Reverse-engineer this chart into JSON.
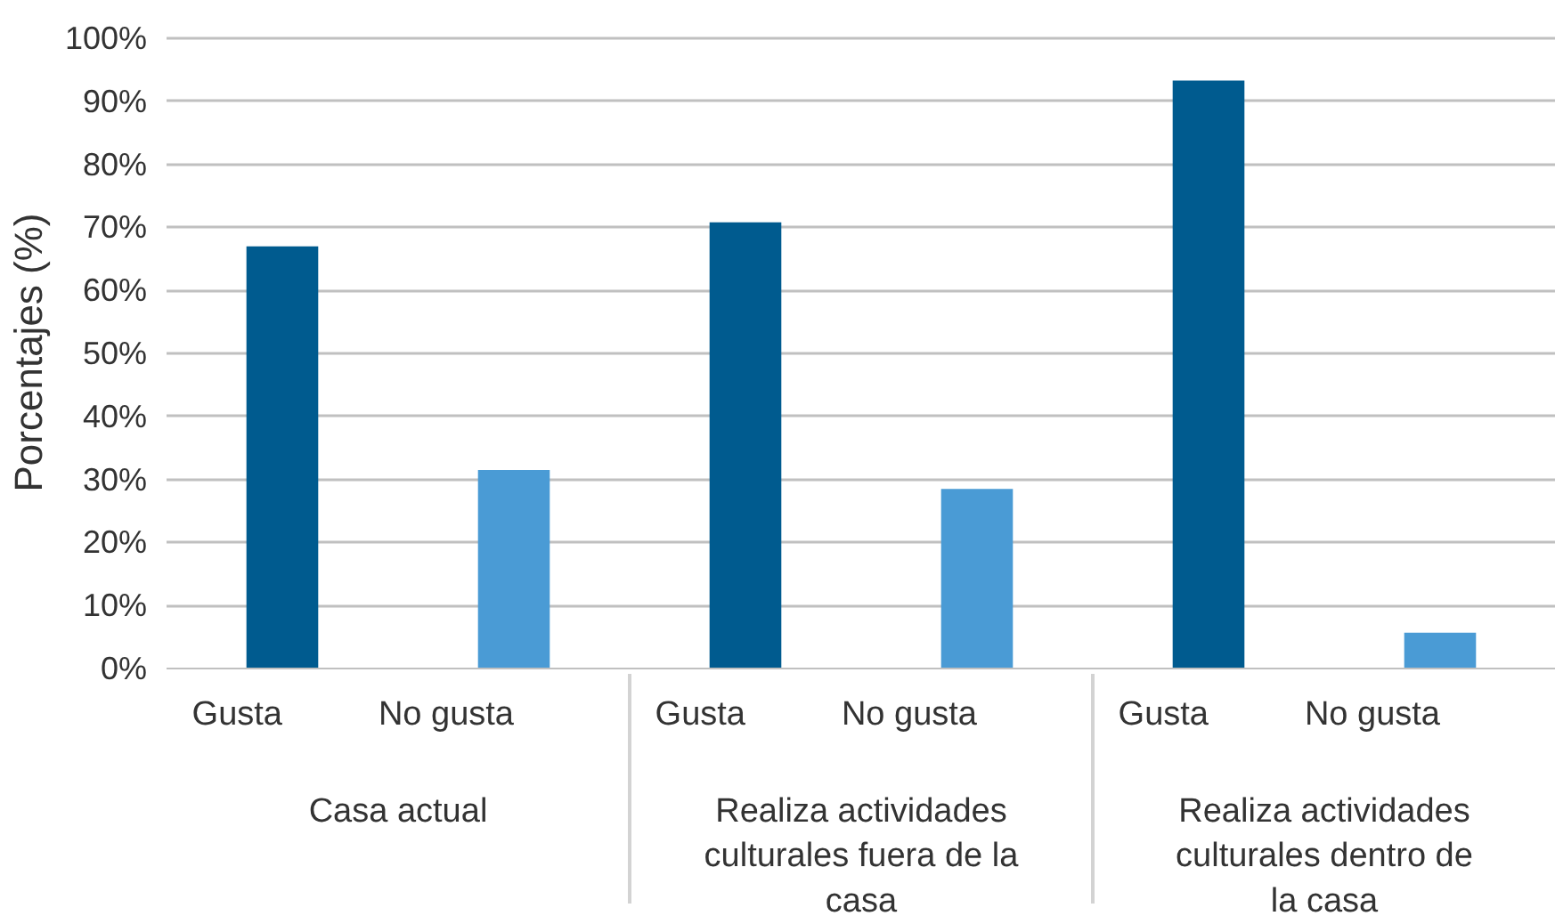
{
  "chart_data": {
    "type": "bar",
    "ylabel": "Porcentajes (%)",
    "categories": [
      "Gusta",
      "No gusta",
      "Gusta",
      "No gusta",
      "Gusta",
      "No gusta"
    ],
    "values": [
      67.0,
      31.5,
      70.8,
      28.5,
      93.3,
      5.7
    ],
    "colors": [
      "#005b8f",
      "#4a9bd5",
      "#005b8f",
      "#4a9bd5",
      "#005b8f",
      "#4a9bd5"
    ],
    "annotations": [
      "Casa actual",
      "Realiza actividades culturales fuera de la casa",
      "Realiza actividades culturales dentro de la casa"
    ],
    "ylim": [
      0,
      100
    ],
    "yticks": [
      {
        "value": 0,
        "label": "0%"
      },
      {
        "value": 10,
        "label": "10%"
      },
      {
        "value": 20,
        "label": "20%"
      },
      {
        "value": 30,
        "label": "30%"
      },
      {
        "value": 40,
        "label": "40%"
      },
      {
        "value": 50,
        "label": "50%"
      },
      {
        "value": 60,
        "label": "60%"
      },
      {
        "value": 70,
        "label": "70%"
      },
      {
        "value": 80,
        "label": "80%"
      },
      {
        "value": 90,
        "label": "90%"
      },
      {
        "value": 100,
        "label": "100%"
      }
    ],
    "grid": "y"
  }
}
